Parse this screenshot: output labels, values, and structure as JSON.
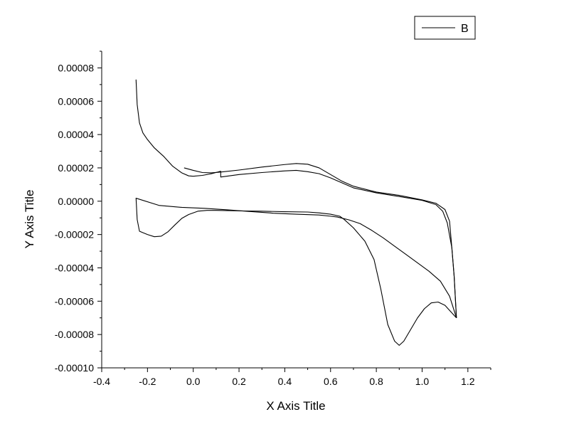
{
  "chart_data": {
    "type": "line",
    "xlabel": "X Axis Title",
    "ylabel": "Y Axis Title",
    "xlim": [
      -0.4,
      1.3
    ],
    "ylim": [
      -0.0001,
      9e-05
    ],
    "x_ticks": [
      -0.4,
      -0.2,
      0.0,
      0.2,
      0.4,
      0.6,
      0.8,
      1.0,
      1.2
    ],
    "x_tick_labels": [
      "-0.4",
      "-0.2",
      "0.0",
      "0.2",
      "0.4",
      "0.6",
      "0.8",
      "1.0",
      "1.2"
    ],
    "y_ticks": [
      -0.0001,
      -8e-05,
      -6e-05,
      -4e-05,
      -2e-05,
      0.0,
      2e-05,
      4e-05,
      6e-05,
      8e-05
    ],
    "y_tick_labels": [
      "-0.00010",
      "-0.00008",
      "-0.00006",
      "-0.00004",
      "-0.00002",
      "0.00000",
      "0.00002",
      "0.00004",
      "0.00006",
      "0.00008"
    ],
    "grid": false,
    "legend_position": "top-right",
    "line_color": "#000000",
    "series": [
      {
        "name": "B",
        "segments": [
          {
            "x": [
              -0.25,
              -0.245,
              -0.235,
              -0.22,
              -0.2,
              -0.17,
              -0.13,
              -0.09,
              -0.05,
              -0.02,
              0.0,
              0.04,
              0.08,
              0.12,
              0.12,
              0.2,
              0.3,
              0.4,
              0.45,
              0.5,
              0.55,
              0.6,
              0.65,
              0.7,
              0.8,
              0.9,
              1.0,
              1.06,
              1.09,
              1.11,
              1.13,
              1.14,
              1.15
            ],
            "y": [
              7.3e-05,
              5.8e-05,
              4.7e-05,
              4.1e-05,
              3.7e-05,
              3.2e-05,
              2.7e-05,
              2.1e-05,
              1.7e-05,
              1.52e-05,
              1.5e-05,
              1.55e-05,
              1.65e-05,
              1.8e-05,
              1.45e-05,
              1.6e-05,
              1.72e-05,
              1.82e-05,
              1.85e-05,
              1.77e-05,
              1.65e-05,
              1.4e-05,
              1.1e-05,
              8e-06,
              5e-06,
              2.8e-06,
              5e-07,
              -2e-06,
              -6e-06,
              -1.3e-05,
              -2.8e-05,
              -4.5e-05,
              -7e-05
            ]
          },
          {
            "x": [
              1.15,
              1.12,
              1.08,
              1.03,
              0.98,
              0.93,
              0.88,
              0.83,
              0.78,
              0.73,
              0.68,
              0.63,
              0.6,
              0.55,
              0.45,
              0.35,
              0.25,
              0.15,
              0.05,
              -0.05,
              -0.15,
              -0.25
            ],
            "y": [
              -7e-05,
              -5.7e-05,
              -4.8e-05,
              -4.2e-05,
              -3.7e-05,
              -3.2e-05,
              -2.7e-05,
              -2.2e-05,
              -1.75e-05,
              -1.35e-05,
              -1.12e-05,
              -9.5e-06,
              -9e-06,
              -8.3e-06,
              -7.8e-06,
              -7.2e-06,
              -6.2e-06,
              -5.2e-06,
              -4.3e-06,
              -3.7e-06,
              -2.5e-06,
              1.8e-06
            ]
          },
          {
            "x": [
              -0.25,
              -0.245,
              -0.235,
              -0.2,
              -0.17,
              -0.14,
              -0.11,
              -0.08,
              -0.05,
              -0.02,
              0.02,
              0.06,
              0.1,
              0.2,
              0.3,
              0.4,
              0.5,
              0.55,
              0.6,
              0.64,
              0.66,
              0.7,
              0.75,
              0.79,
              0.82,
              0.85,
              0.88,
              0.9,
              0.92,
              0.95,
              0.98,
              1.01,
              1.04,
              1.07,
              1.1,
              1.12,
              1.14,
              1.15
            ],
            "y": [
              2e-06,
              -1.1e-05,
              -1.8e-05,
              -2e-05,
              -2.13e-05,
              -2.1e-05,
              -1.83e-05,
              -1.42e-05,
              -1.03e-05,
              -8e-06,
              -6e-06,
              -5.5e-06,
              -5.5e-06,
              -5.8e-06,
              -6e-06,
              -6.3e-06,
              -6.5e-06,
              -7e-06,
              -7.8e-06,
              -9e-06,
              -1.1e-05,
              -1.6e-05,
              -2.4e-05,
              -3.5e-05,
              -5.3e-05,
              -7.4e-05,
              -8.4e-05,
              -8.65e-05,
              -8.4e-05,
              -7.7e-05,
              -7e-05,
              -6.45e-05,
              -6.1e-05,
              -6.05e-05,
              -6.25e-05,
              -6.55e-05,
              -6.85e-05,
              -7e-05
            ]
          },
          {
            "x": [
              1.15,
              1.14,
              1.13,
              1.12,
              1.1,
              1.06,
              1.0,
              0.9,
              0.8,
              0.7,
              0.65,
              0.6,
              0.55,
              0.5,
              0.45,
              0.4,
              0.3,
              0.2,
              0.12,
              0.08,
              0.04,
              0.0,
              -0.04
            ],
            "y": [
              -7e-05,
              -4.5e-05,
              -2.8e-05,
              -1.2e-05,
              -5e-06,
              -1.2e-06,
              8e-07,
              3.5e-06,
              5.5e-06,
              9e-06,
              1.2e-05,
              1.6e-05,
              2e-05,
              2.22e-05,
              2.26e-05,
              2.2e-05,
              2.05e-05,
              1.87e-05,
              1.75e-05,
              1.7e-05,
              1.72e-05,
              1.85e-05,
              2e-05
            ]
          }
        ]
      }
    ]
  }
}
